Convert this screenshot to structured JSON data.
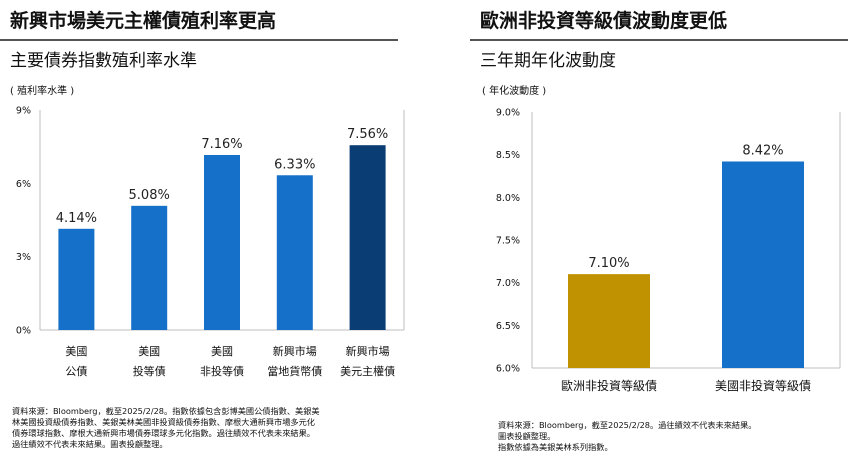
{
  "left": {
    "title": "新興市場美元主權債殖利率更高",
    "subtitle": "主要債券指數殖利率水準",
    "unit": "( 殖利率水準 )",
    "source": [
      "資料來源：Bloomberg，截至2025/2/28。指數依據包含彭博美國公債指數、美銀美",
      "林美國投資級債券指數、美銀美林美國非投資級債券指數、摩根大通新興市場多元化",
      "債券環球指數、摩根大通新興市場債券環球多元化指數。過往績效不代表未來結果。",
      "過往績效不代表未來結果。圖表投顧整理。"
    ]
  },
  "right": {
    "title": "歐洲非投資等級債波動度更低",
    "subtitle": "三年期年化波動度",
    "unit": "( 年化波動度 )",
    "source": [
      "資料來源：Bloomberg，截至2025/2/28。過往績效不代表未來結果。",
      "圖表投顧整理。",
      "指數依據為美銀美林系列指數。"
    ]
  },
  "chart_data": [
    {
      "type": "bar",
      "categories": [
        [
          "美國",
          "公債"
        ],
        [
          "美國",
          "投等債"
        ],
        [
          "美國",
          "非投等債"
        ],
        [
          "新興市場",
          "當地貨幣債"
        ],
        [
          "新興市場",
          "美元主權債"
        ]
      ],
      "values": [
        4.14,
        5.08,
        7.16,
        6.33,
        7.56
      ],
      "data_labels": [
        "4.14%",
        "5.08%",
        "7.16%",
        "6.33%",
        "7.56%"
      ],
      "colors": [
        "#1470C8",
        "#1470C8",
        "#1470C8",
        "#1470C8",
        "#0A3D73"
      ],
      "ylim": [
        0,
        9
      ],
      "yticks": [
        0,
        3,
        6,
        9
      ],
      "ytick_labels": [
        "0%",
        "3%",
        "6%",
        "9%"
      ],
      "title": "主要債券指數殖利率水準",
      "ylabel": "( 殖利率水準 )",
      "grid": false
    },
    {
      "type": "bar",
      "categories": [
        [
          "歐洲非投資等級債"
        ],
        [
          "美國非投資等級債"
        ]
      ],
      "values": [
        7.1,
        8.42
      ],
      "data_labels": [
        "7.10%",
        "8.42%"
      ],
      "colors": [
        "#C09100",
        "#1470C8"
      ],
      "ylim": [
        6.0,
        9.0
      ],
      "yticks": [
        6.0,
        6.5,
        7.0,
        7.5,
        8.0,
        8.5,
        9.0
      ],
      "ytick_labels": [
        "6.0%",
        "6.5%",
        "7.0%",
        "7.5%",
        "8.0%",
        "8.5%",
        "9.0%"
      ],
      "title": "三年期年化波動度",
      "ylabel": "( 年化波動度 )",
      "grid": false
    }
  ]
}
